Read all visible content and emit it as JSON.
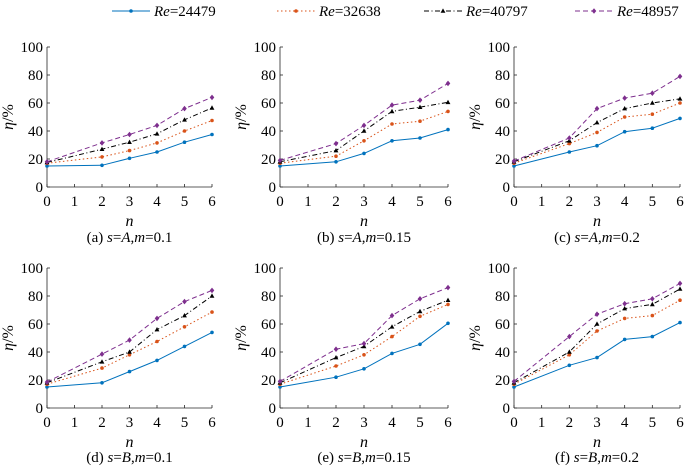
{
  "legend": [
    {
      "prefix": "Re",
      "value": "=24479",
      "color": "#0072BD",
      "marker": "dot",
      "dash": "solid"
    },
    {
      "prefix": "Re",
      "value": "=32638",
      "color": "#D95319",
      "marker": "dot",
      "dash": "dotted"
    },
    {
      "prefix": "Re",
      "value": "=40797",
      "color": "#000000",
      "marker": "triangle",
      "dash": "dashdot"
    },
    {
      "prefix": "Re",
      "value": "=48957",
      "color": "#7E2F8E",
      "marker": "diamond",
      "dash": "dashed"
    }
  ],
  "chart_data": [
    {
      "type": "line",
      "caption_prefix": "(a) ",
      "caption_var1": "s",
      "caption_eq1": "=",
      "caption_val1": "A",
      "caption_sep": ",",
      "caption_var2": "m",
      "caption_rest": "=0.1",
      "xlabel": "n",
      "ylabel_var": "η",
      "ylabel_unit": "/%",
      "xlim": [
        0,
        6
      ],
      "ylim": [
        0,
        100
      ],
      "xticks": [
        "0",
        "1",
        "2",
        "3",
        "4",
        "5",
        "6"
      ],
      "yticks": [
        "0",
        "20",
        "40",
        "60",
        "80",
        "100"
      ],
      "x": [
        0,
        2,
        3,
        4,
        5,
        6
      ],
      "series": [
        {
          "name": "Re=24479",
          "values": [
            15,
            15.5,
            20.5,
            25,
            32,
            37.5
          ]
        },
        {
          "name": "Re=32638",
          "values": [
            17,
            21.5,
            26,
            31.5,
            40,
            47.5
          ]
        },
        {
          "name": "Re=40797",
          "values": [
            17.5,
            27,
            32,
            38,
            48,
            56.5
          ]
        },
        {
          "name": "Re=48957",
          "values": [
            18,
            31.5,
            37.5,
            44,
            56,
            64
          ]
        }
      ]
    },
    {
      "type": "line",
      "caption_prefix": "(b) ",
      "caption_var1": "s",
      "caption_eq1": "=",
      "caption_val1": "A",
      "caption_sep": ",",
      "caption_var2": "m",
      "caption_rest": "=0.15",
      "xlabel": "n",
      "ylabel_var": "η",
      "ylabel_unit": "/%",
      "xlim": [
        0,
        6
      ],
      "ylim": [
        0,
        100
      ],
      "xticks": [
        "0",
        "1",
        "2",
        "3",
        "4",
        "5",
        "6"
      ],
      "yticks": [
        "0",
        "20",
        "40",
        "60",
        "80",
        "100"
      ],
      "x": [
        0,
        2,
        3,
        4,
        5,
        6
      ],
      "series": [
        {
          "name": "Re=24479",
          "values": [
            15,
            18,
            24,
            33,
            35,
            41
          ]
        },
        {
          "name": "Re=32638",
          "values": [
            17,
            22,
            33,
            45,
            47,
            54
          ]
        },
        {
          "name": "Re=40797",
          "values": [
            18,
            26,
            40,
            54,
            57,
            60.5
          ]
        },
        {
          "name": "Re=48957",
          "values": [
            19,
            31,
            44,
            58.5,
            62,
            74
          ]
        }
      ]
    },
    {
      "type": "line",
      "caption_prefix": "(c) ",
      "caption_var1": "s",
      "caption_eq1": "=",
      "caption_val1": "A",
      "caption_sep": ",",
      "caption_var2": "m",
      "caption_rest": "=0.2",
      "xlabel": "n",
      "ylabel_var": "η",
      "ylabel_unit": "/%",
      "xlim": [
        0,
        6
      ],
      "ylim": [
        0,
        100
      ],
      "xticks": [
        "0",
        "1",
        "2",
        "3",
        "4",
        "5",
        "6"
      ],
      "yticks": [
        "0",
        "20",
        "40",
        "60",
        "80",
        "100"
      ],
      "x": [
        0,
        2,
        3,
        4,
        5,
        6
      ],
      "series": [
        {
          "name": "Re=24479",
          "values": [
            15,
            25,
            29.5,
            39.5,
            42,
            49
          ]
        },
        {
          "name": "Re=32638",
          "values": [
            17,
            31,
            39,
            50,
            52,
            60
          ]
        },
        {
          "name": "Re=40797",
          "values": [
            18,
            33,
            46,
            56,
            60,
            63
          ]
        },
        {
          "name": "Re=48957",
          "values": [
            18.5,
            35,
            56,
            63.5,
            67,
            79
          ]
        }
      ]
    },
    {
      "type": "line",
      "caption_prefix": "(d) ",
      "caption_var1": "s",
      "caption_eq1": "=",
      "caption_val1": "B",
      "caption_sep": ",",
      "caption_var2": "m",
      "caption_rest": "=0.1",
      "xlabel": "n",
      "ylabel_var": "η",
      "ylabel_unit": "/%",
      "xlim": [
        0,
        6
      ],
      "ylim": [
        0,
        100
      ],
      "xticks": [
        "0",
        "1",
        "2",
        "3",
        "4",
        "5",
        "6"
      ],
      "yticks": [
        "0",
        "20",
        "40",
        "60",
        "80",
        "100"
      ],
      "x": [
        0,
        2,
        3,
        4,
        5,
        6
      ],
      "series": [
        {
          "name": "Re=24479",
          "values": [
            15,
            18,
            26,
            34,
            44,
            54
          ]
        },
        {
          "name": "Re=32638",
          "values": [
            17,
            28.5,
            38,
            47.5,
            58,
            68.5
          ]
        },
        {
          "name": "Re=40797",
          "values": [
            18,
            33,
            40,
            56,
            66,
            80
          ]
        },
        {
          "name": "Re=48957",
          "values": [
            18.5,
            38.5,
            48.5,
            64,
            76,
            84
          ]
        }
      ]
    },
    {
      "type": "line",
      "caption_prefix": "(e) ",
      "caption_var1": "s",
      "caption_eq1": "=",
      "caption_val1": "B",
      "caption_sep": ",",
      "caption_var2": "m",
      "caption_rest": "=0.15",
      "xlabel": "n",
      "ylabel_var": "η",
      "ylabel_unit": "/%",
      "xlim": [
        0,
        6
      ],
      "ylim": [
        0,
        100
      ],
      "xticks": [
        "0",
        "1",
        "2",
        "3",
        "4",
        "5",
        "6"
      ],
      "yticks": [
        "0",
        "20",
        "40",
        "60",
        "80",
        "100"
      ],
      "x": [
        0,
        2,
        3,
        4,
        5,
        6
      ],
      "series": [
        {
          "name": "Re=24479",
          "values": [
            15,
            22,
            28,
            39,
            45.5,
            60.5
          ]
        },
        {
          "name": "Re=32638",
          "values": [
            17,
            30,
            38,
            51,
            65.5,
            74
          ]
        },
        {
          "name": "Re=40797",
          "values": [
            18,
            36,
            44,
            58,
            69,
            77
          ]
        },
        {
          "name": "Re=48957",
          "values": [
            19,
            42,
            46,
            66,
            78,
            86
          ]
        }
      ]
    },
    {
      "type": "line",
      "caption_prefix": "(f) ",
      "caption_var1": "s",
      "caption_eq1": "=",
      "caption_val1": "B",
      "caption_sep": ",",
      "caption_var2": "m",
      "caption_rest": "=0.2",
      "xlabel": "n",
      "ylabel_var": "η",
      "ylabel_unit": "/%",
      "xlim": [
        0,
        6
      ],
      "ylim": [
        0,
        100
      ],
      "xticks": [
        "0",
        "1",
        "2",
        "3",
        "4",
        "5",
        "6"
      ],
      "yticks": [
        "0",
        "20",
        "40",
        "60",
        "80",
        "100"
      ],
      "x": [
        0,
        2,
        3,
        4,
        5,
        6
      ],
      "series": [
        {
          "name": "Re=24479",
          "values": [
            15,
            30.5,
            36,
            49,
            51,
            61
          ]
        },
        {
          "name": "Re=32638",
          "values": [
            17,
            38,
            55,
            64,
            66,
            77
          ]
        },
        {
          "name": "Re=40797",
          "values": [
            18,
            40,
            60,
            71,
            74,
            85
          ]
        },
        {
          "name": "Re=48957",
          "values": [
            19,
            51,
            67,
            74.5,
            78,
            89
          ]
        }
      ]
    }
  ]
}
